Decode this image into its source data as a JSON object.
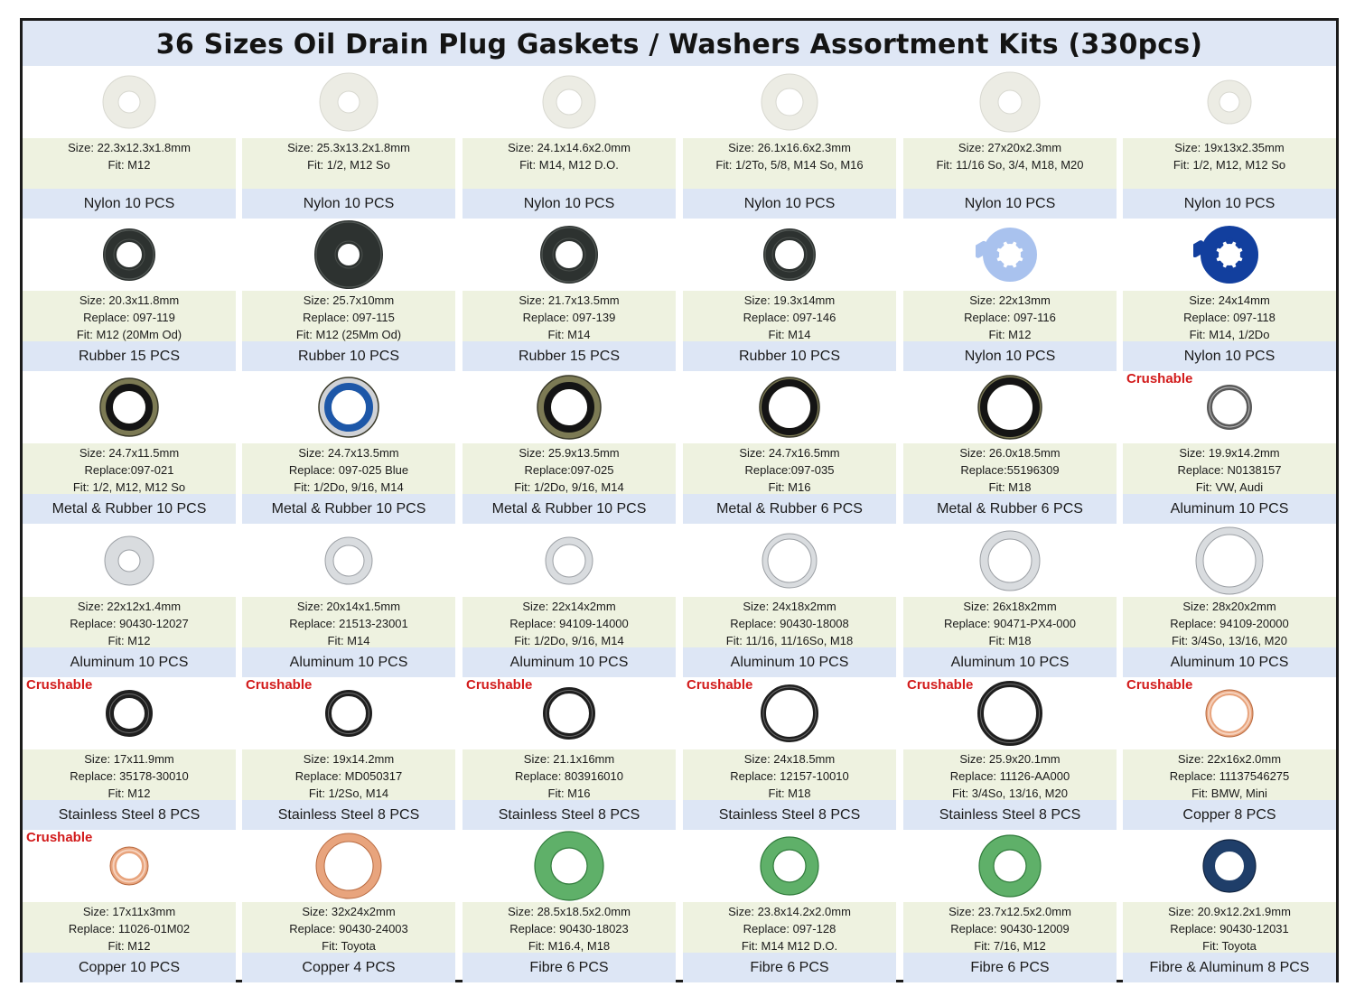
{
  "title": "36 Sizes Oil Drain Plug Gaskets / Washers Assortment Kits (330pcs)",
  "crushable_label": "Crushable",
  "rows": [
    [
      {
        "lines": [
          "Size: 22.3x12.3x1.8mm",
          "Fit: M12"
        ],
        "type": "Nylon 10 PCS",
        "icon": "nylon-washer-icon",
        "crushable": false
      },
      {
        "lines": [
          "Size: 25.3x13.2x1.8mm",
          "Fit: 1/2, M12 So"
        ],
        "type": "Nylon 10 PCS",
        "icon": "nylon-washer-icon",
        "crushable": false
      },
      {
        "lines": [
          "Size: 24.1x14.6x2.0mm",
          "Fit: M14, M12 D.O."
        ],
        "type": "Nylon 10 PCS",
        "icon": "nylon-washer-icon",
        "crushable": false
      },
      {
        "lines": [
          "Size: 26.1x16.6x2.3mm",
          "Fit: 1/2To, 5/8, M14 So, M16"
        ],
        "type": "Nylon 10 PCS",
        "icon": "nylon-washer-icon",
        "crushable": false
      },
      {
        "lines": [
          "Size: 27x20x2.3mm",
          "Fit: 11/16 So, 3/4, M18,  M20"
        ],
        "type": "Nylon 10 PCS",
        "icon": "nylon-washer-icon",
        "crushable": false
      },
      {
        "lines": [
          "Size: 19x13x2.35mm",
          "Fit: 1/2, M12, M12 So"
        ],
        "type": "Nylon 10 PCS",
        "icon": "nylon-washer-icon",
        "crushable": false
      }
    ],
    [
      {
        "lines": [
          "Size: 20.3x11.8mm",
          "Replace: 097-119",
          "Fit: M12 (20Mm Od)"
        ],
        "type": "Rubber 15 PCS",
        "icon": "rubber-washer-icon",
        "crushable": false
      },
      {
        "lines": [
          "Size: 25.7x10mm",
          "Replace: 097-115",
          "Fit:  M12 (25Mm Od)"
        ],
        "type": "Rubber 10 PCS",
        "icon": "rubber-washer-icon",
        "crushable": false
      },
      {
        "lines": [
          "Size: 21.7x13.5mm",
          "Replace: 097-139",
          "Fit: M14"
        ],
        "type": "Rubber 15 PCS",
        "icon": "rubber-washer-icon",
        "crushable": false
      },
      {
        "lines": [
          "Size: 19.3x14mm",
          "Replace: 097-146",
          "Fit: M14"
        ],
        "type": "Rubber 10 PCS",
        "icon": "rubber-washer-icon",
        "crushable": false
      },
      {
        "lines": [
          "Size: 22x13mm",
          "Replace: 097-116",
          "Fit: M12"
        ],
        "type": "Nylon 10 PCS",
        "icon": "tabbed-nylon-washer-icon",
        "crushable": false
      },
      {
        "lines": [
          "Size: 24x14mm",
          "Replace: 097-118",
          "Fit: M14, 1/2Do"
        ],
        "type": "Nylon 10 PCS",
        "icon": "tabbed-nylon-washer-icon",
        "crushable": false
      }
    ],
    [
      {
        "lines": [
          "Size: 24.7x11.5mm",
          "Replace:097-021",
          "Fit: 1/2, M12, M12 So"
        ],
        "type": "Metal & Rubber 10 PCS",
        "icon": "bonded-seal-icon",
        "crushable": false
      },
      {
        "lines": [
          "Size: 24.7x13.5mm",
          "Replace: 097-025 Blue",
          "Fit: 1/2Do, 9/16, M14"
        ],
        "type": "Metal & Rubber 10 PCS",
        "icon": "bonded-seal-blue-icon",
        "crushable": false
      },
      {
        "lines": [
          "Size: 25.9x13.5mm",
          "Replace:097-025",
          "Fit: 1/2Do, 9/16, M14"
        ],
        "type": "Metal & Rubber 10 PCS",
        "icon": "bonded-seal-icon",
        "crushable": false
      },
      {
        "lines": [
          "Size: 24.7x16.5mm",
          "Replace:097-035",
          "Fit: M16"
        ],
        "type": "Metal & Rubber 6 PCS",
        "icon": "bonded-seal-icon",
        "crushable": false
      },
      {
        "lines": [
          "Size: 26.0x18.5mm",
          "Replace:55196309",
          "Fit: M18"
        ],
        "type": "Metal & Rubber 6 PCS",
        "icon": "bonded-seal-icon",
        "crushable": false
      },
      {
        "lines": [
          "Size: 19.9x14.2mm",
          "Replace: N0138157",
          "Fit: VW, Audi"
        ],
        "type": "Aluminum 10 PCS",
        "icon": "crush-washer-icon",
        "crushable": true
      }
    ],
    [
      {
        "lines": [
          "Size: 22x12x1.4mm",
          "Replace: 90430-12027",
          "Fit: M12"
        ],
        "type": "Aluminum 10 PCS",
        "icon": "aluminum-washer-icon",
        "crushable": false
      },
      {
        "lines": [
          "Size: 20x14x1.5mm",
          "Replace: 21513-23001",
          "Fit: M14"
        ],
        "type": "Aluminum 10 PCS",
        "icon": "aluminum-washer-icon",
        "crushable": false
      },
      {
        "lines": [
          "Size: 22x14x2mm",
          "Replace: 94109-14000",
          "Fit: 1/2Do, 9/16, M14"
        ],
        "type": "Aluminum 10 PCS",
        "icon": "aluminum-washer-icon",
        "crushable": false
      },
      {
        "lines": [
          "Size: 24x18x2mm",
          "Replace: 90430-18008",
          "Fit: 11/16, 11/16So, M18"
        ],
        "type": "Aluminum 10 PCS",
        "icon": "aluminum-washer-icon",
        "crushable": false
      },
      {
        "lines": [
          "Size: 26x18x2mm",
          "Replace: 90471-PX4-000",
          "Fit: M18"
        ],
        "type": "Aluminum 10 PCS",
        "icon": "aluminum-washer-icon",
        "crushable": false
      },
      {
        "lines": [
          "Size: 28x20x2mm",
          "Replace: 94109-20000",
          "Fit: 3/4So, 13/16, M20"
        ],
        "type": "Aluminum 10 PCS",
        "icon": "aluminum-washer-icon",
        "crushable": false
      }
    ],
    [
      {
        "lines": [
          "Size: 17x11.9mm",
          "Replace: 35178-30010",
          "Fit: M12"
        ],
        "type": "Stainless Steel 8 PCS",
        "icon": "steel-crush-washer-icon",
        "crushable": true
      },
      {
        "lines": [
          "Size: 19x14.2mm",
          "Replace: MD050317",
          "Fit: 1/2So, M14"
        ],
        "type": "Stainless Steel 8 PCS",
        "icon": "steel-crush-washer-icon",
        "crushable": true
      },
      {
        "lines": [
          "Size: 21.1x16mm",
          "Replace: 803916010",
          "Fit: M16"
        ],
        "type": "Stainless Steel 8 PCS",
        "icon": "steel-crush-washer-icon",
        "crushable": true
      },
      {
        "lines": [
          "Size: 24x18.5mm",
          "Replace: 12157-10010",
          "Fit: M18"
        ],
        "type": "Stainless Steel 8 PCS",
        "icon": "steel-crush-washer-icon",
        "crushable": true
      },
      {
        "lines": [
          "Size: 25.9x20.1mm",
          "Replace: 11126-AA000",
          "Fit: 3/4So, 13/16, M20"
        ],
        "type": "Stainless Steel 8 PCS",
        "icon": "steel-crush-washer-icon",
        "crushable": true
      },
      {
        "lines": [
          "Size: 22x16x2.0mm",
          "Replace: 11137546275",
          "Fit: BMW, Mini"
        ],
        "type": "Copper 8 PCS",
        "icon": "copper-crush-washer-icon",
        "crushable": true
      }
    ],
    [
      {
        "lines": [
          "Size: 17x11x3mm",
          "Replace: 11026-01M02",
          "Fit: M12"
        ],
        "type": "Copper 10 PCS",
        "icon": "copper-crush-washer-icon",
        "crushable": true
      },
      {
        "lines": [
          "Size: 32x24x2mm",
          "Replace: 90430-24003",
          "Fit: Toyota"
        ],
        "type": "Copper 4 PCS",
        "icon": "copper-washer-icon",
        "crushable": false
      },
      {
        "lines": [
          "Size: 28.5x18.5x2.0mm",
          "Replace:  90430-18023",
          "Fit: M16.4, M18"
        ],
        "type": "Fibre 6 PCS",
        "icon": "fibre-washer-icon",
        "crushable": false
      },
      {
        "lines": [
          "Size: 23.8x14.2x2.0mm",
          "Replace:  097-128",
          "Fit: M14 M12 D.O."
        ],
        "type": "Fibre 6 PCS",
        "icon": "fibre-washer-icon",
        "crushable": false
      },
      {
        "lines": [
          "Size: 23.7x12.5x2.0mm",
          "Replace:  90430-12009",
          "Fit: 7/16, M12"
        ],
        "type": "Fibre 6 PCS",
        "icon": "fibre-washer-icon",
        "crushable": false
      },
      {
        "lines": [
          "Size: 20.9x12.2x1.9mm",
          "Replace:  90430-12031",
          "Fit: Toyota"
        ],
        "type": "Fibre & Aluminum 8 PCS",
        "icon": "fibre-aluminum-washer-icon",
        "crushable": false
      }
    ]
  ],
  "colors": {
    "title_bg": "#dfe7f5",
    "desc_bg": "#eef2e0",
    "type_bg": "#dde6f5",
    "crushable_red": "#d21b1b",
    "nylon": "#f2f2ec",
    "rubber": "#2d3230",
    "nylon_blue_light": "#a9c2ee",
    "nylon_blue_dark": "#123f9e",
    "bonded_metal": "#7c7a54",
    "aluminum": "#d9dcdf",
    "steel": "#1f1f1f",
    "copper": "#e8a47d",
    "fibre": "#5fb069",
    "fibre_dark": "#1f3e69"
  }
}
